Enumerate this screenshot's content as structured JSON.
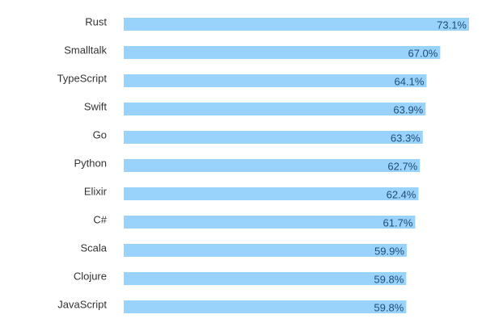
{
  "chart_data": {
    "type": "bar",
    "orientation": "horizontal",
    "categories": [
      "Rust",
      "Smalltalk",
      "TypeScript",
      "Swift",
      "Go",
      "Python",
      "Elixir",
      "C#",
      "Scala",
      "Clojure",
      "JavaScript"
    ],
    "values": [
      73.1,
      67.0,
      64.1,
      63.9,
      63.3,
      62.7,
      62.4,
      61.7,
      59.9,
      59.8,
      59.8
    ],
    "value_labels": [
      "73.1%",
      "67.0%",
      "64.1%",
      "63.9%",
      "63.3%",
      "62.7%",
      "62.4%",
      "61.7%",
      "59.9%",
      "59.8%",
      "59.8%"
    ],
    "xlim": [
      0,
      73.1
    ],
    "grid": false,
    "legend": "none",
    "title": "",
    "xlabel": "",
    "ylabel": ""
  },
  "colors": {
    "bar": "#99d2fb",
    "value_text": "#1f4e79",
    "category_text": "#333333"
  }
}
